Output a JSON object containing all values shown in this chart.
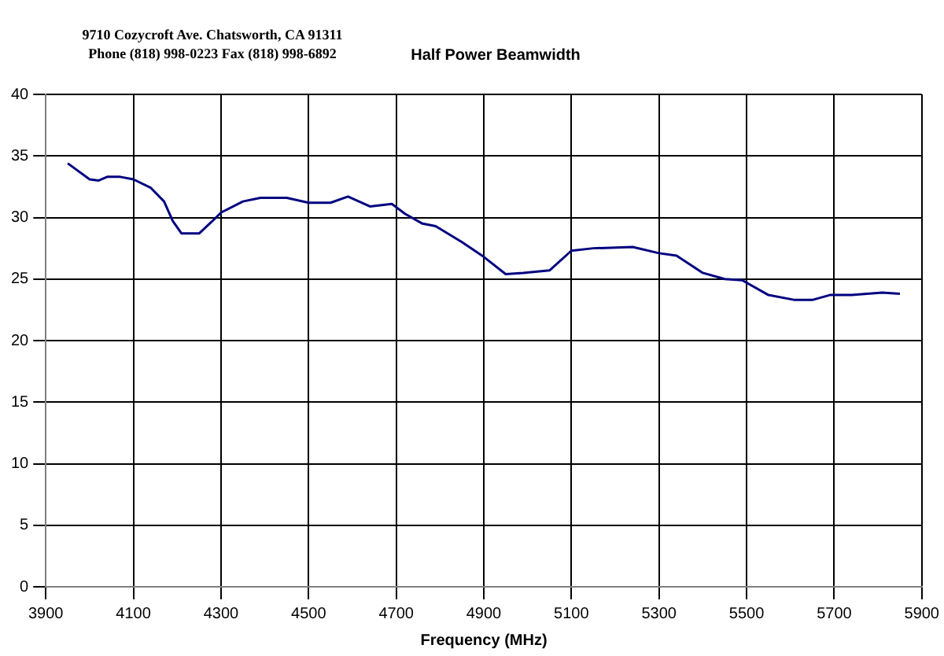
{
  "chart_data": {
    "type": "line",
    "title": "Half Power Beamwidth",
    "xlabel": "Frequency (MHz)",
    "annotations": [
      "9710 Cozycroft Ave. Chatsworth, CA 91311",
      "Phone (818) 998-0223 Fax (818) 998-6892"
    ],
    "x": [
      3950,
      4000,
      4020,
      4040,
      4070,
      4100,
      4140,
      4170,
      4190,
      4210,
      4250,
      4280,
      4300,
      4350,
      4390,
      4450,
      4500,
      4550,
      4590,
      4640,
      4690,
      4720,
      4760,
      4790,
      4850,
      4900,
      4950,
      4990,
      5050,
      5100,
      5150,
      5240,
      5300,
      5340,
      5400,
      5450,
      5490,
      5550,
      5610,
      5650,
      5690,
      5740,
      5810,
      5850
    ],
    "series": [
      {
        "color": "#000080",
        "values": [
          34.4,
          33.1,
          33.0,
          33.3,
          33.3,
          33.1,
          32.4,
          31.3,
          29.7,
          28.7,
          28.7,
          29.7,
          30.4,
          31.3,
          31.6,
          31.6,
          31.2,
          31.2,
          31.7,
          30.9,
          31.1,
          30.3,
          29.5,
          29.3,
          28.0,
          26.8,
          25.4,
          25.5,
          25.7,
          27.3,
          27.5,
          27.6,
          27.1,
          26.9,
          25.5,
          25.0,
          24.9,
          23.7,
          23.3,
          23.3,
          23.7,
          23.7,
          23.9,
          23.8
        ]
      }
    ],
    "xlim": [
      3900,
      5900
    ],
    "xticks": [
      3900,
      4100,
      4300,
      4500,
      4700,
      4900,
      5100,
      5300,
      5500,
      5700,
      5900
    ],
    "ylim": [
      0,
      40
    ],
    "yticks": [
      0,
      5,
      10,
      15,
      20,
      25,
      30,
      35,
      40
    ],
    "grid": true,
    "legend": false,
    "marker": "none",
    "line_style": "solid"
  }
}
